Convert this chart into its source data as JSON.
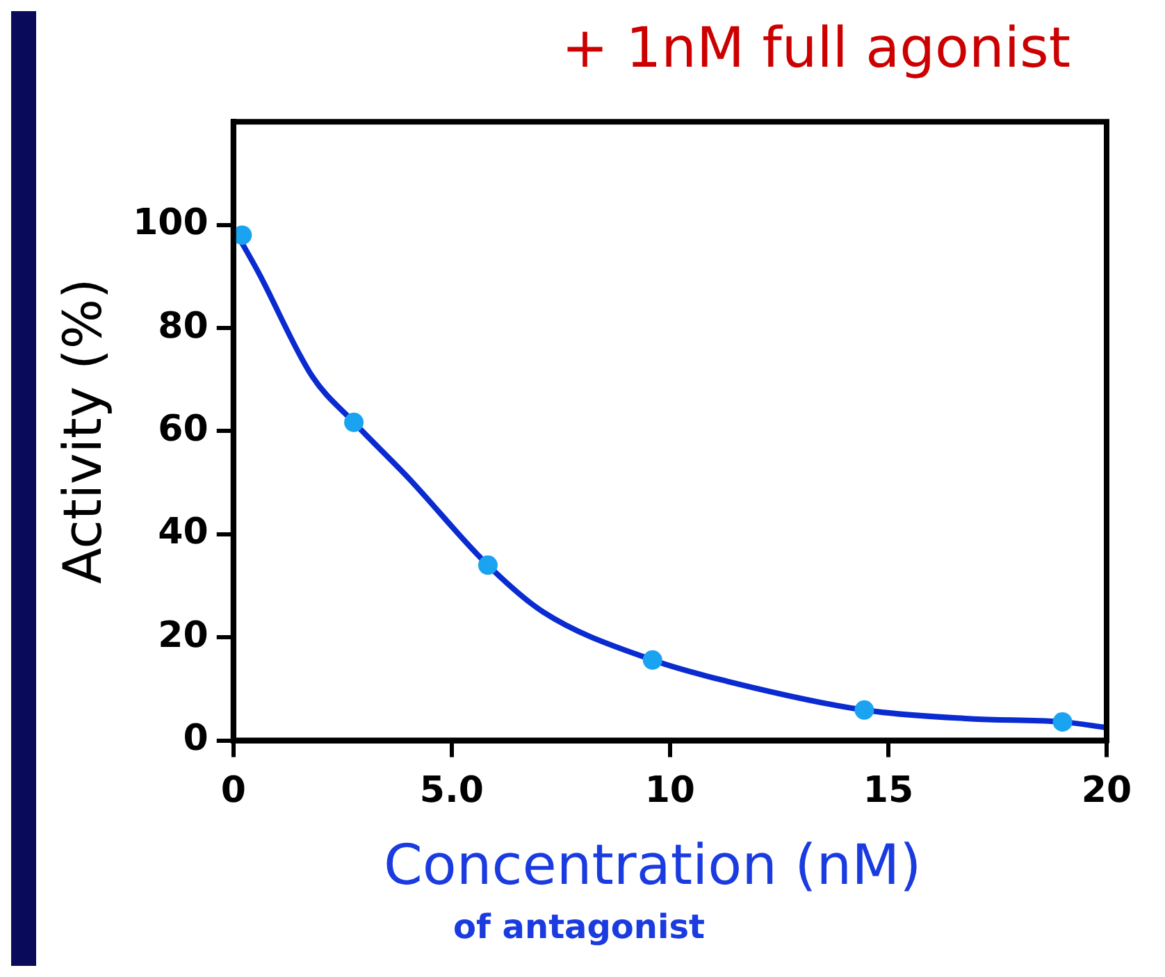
{
  "chart_data": {
    "type": "scatter",
    "title": "+ 1nM full agonist",
    "xlabel": "Concentration (nM)",
    "ylabel": "Activity (%)",
    "annotations": [
      "of antagonist"
    ],
    "xlim": [
      0,
      20
    ],
    "xticks": [
      0,
      {
        "value": 5,
        "label": "5.0"
      },
      10,
      15,
      20
    ],
    "ylim": [
      0,
      120
    ],
    "yticks": [
      0,
      20,
      40,
      60,
      80,
      100
    ],
    "grid": false,
    "legend": false,
    "series": [
      {
        "type": "line",
        "color": "#0a2bd0",
        "marker": "none",
        "x": [
          0,
          0.56,
          1.8,
          2.76,
          4,
          5.83,
          7.1,
          9.6,
          11.3,
          14.45,
          16.9,
          18.99,
          20
        ],
        "values": [
          99.4,
          91,
          70.7,
          61.7,
          51,
          34,
          24.9,
          15.6,
          11.5,
          5.9,
          4.2,
          3.6,
          2.5
        ]
      },
      {
        "color": "#1aa3f0",
        "marker": "circle",
        "x": [
          0.2,
          2.76,
          5.83,
          9.6,
          14.45,
          18.99
        ],
        "values": [
          98,
          61.7,
          34,
          15.6,
          5.9,
          3.6
        ]
      }
    ]
  }
}
